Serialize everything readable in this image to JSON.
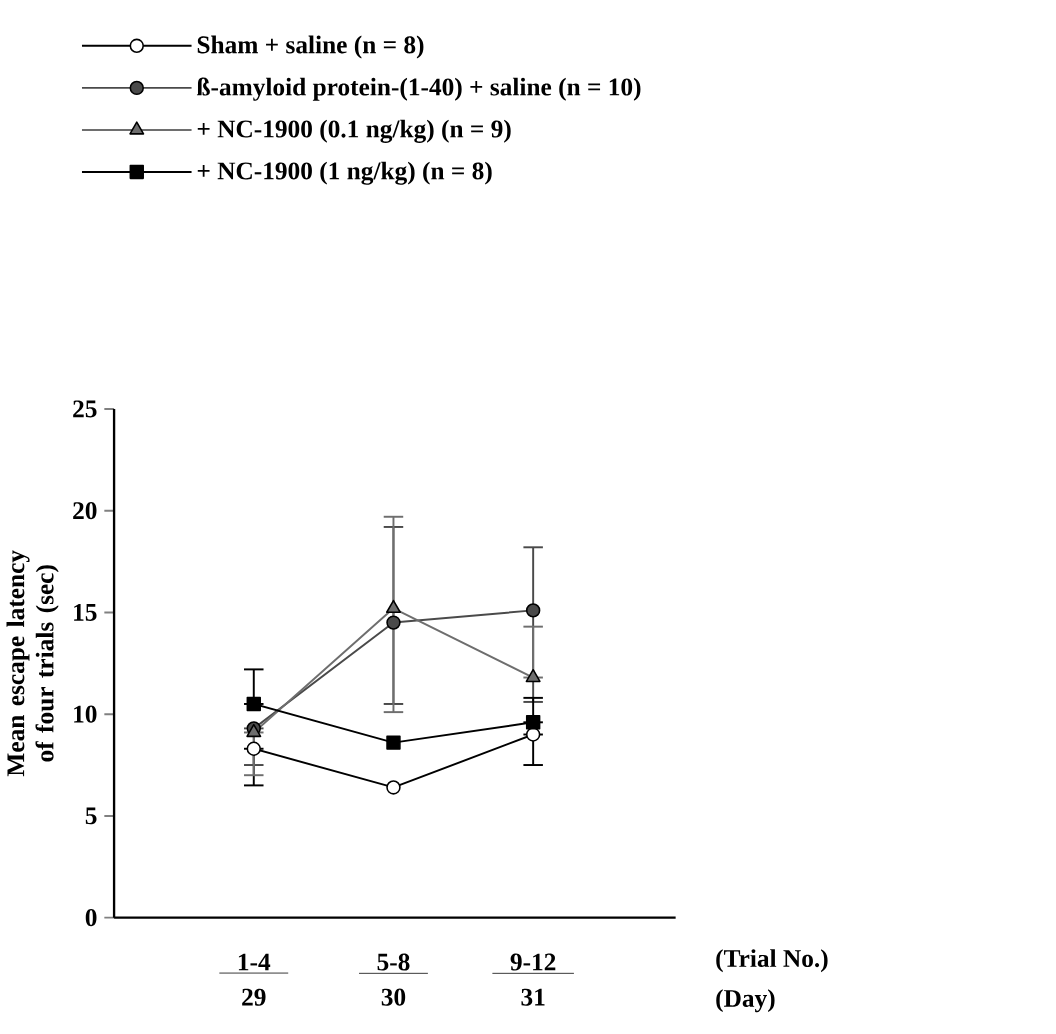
{
  "chart_data": {
    "type": "line",
    "ylabel": "Mean escape latency  of four trials (sec)",
    "categories": [
      "1-4",
      "5-8",
      "9-12"
    ],
    "ylim": [
      0,
      25
    ],
    "yticks": [
      0,
      5,
      10,
      15,
      20,
      25
    ],
    "legend": "top",
    "grid": false,
    "line_style": "solid",
    "series": [
      {
        "name": "Sham + saline (n = 8)",
        "color": "#ffffff",
        "marker": "circle",
        "values": [
          8.3,
          6.4,
          9.0
        ],
        "errors": [
          [
            6.5,
            8.3
          ],
          null,
          [
            7.5,
            9.0
          ]
        ]
      },
      {
        "name": "ß-amyloid protein-(1-40) + saline (n = 10)",
        "color": "#4a4a4a",
        "marker": "circle",
        "values": [
          9.3,
          14.5,
          15.1
        ],
        "errors": [
          [
            7.5,
            9.3
          ],
          [
            10.5,
            19.2
          ],
          [
            10.6,
            18.2
          ]
        ]
      },
      {
        "name": "+ NC-1900 (0.1 ng/kg) (n = 9)",
        "color": "#6e6e6e",
        "marker": "triangle",
        "values": [
          9.1,
          15.2,
          11.8
        ],
        "errors": [
          [
            7.0,
            9.1
          ],
          [
            10.1,
            19.7
          ],
          [
            11.8,
            14.3
          ]
        ]
      },
      {
        "name": "+ NC-1900 (1 ng/kg) (n = 8)",
        "color": "#000000",
        "marker": "square",
        "values": [
          10.5,
          8.6,
          9.6
        ],
        "errors": [
          [
            10.5,
            12.2
          ],
          null,
          [
            9.6,
            10.8
          ]
        ]
      }
    ],
    "annotations": [
      "29",
      "30",
      "31",
      "(Trial No.)",
      "(Day)"
    ]
  }
}
